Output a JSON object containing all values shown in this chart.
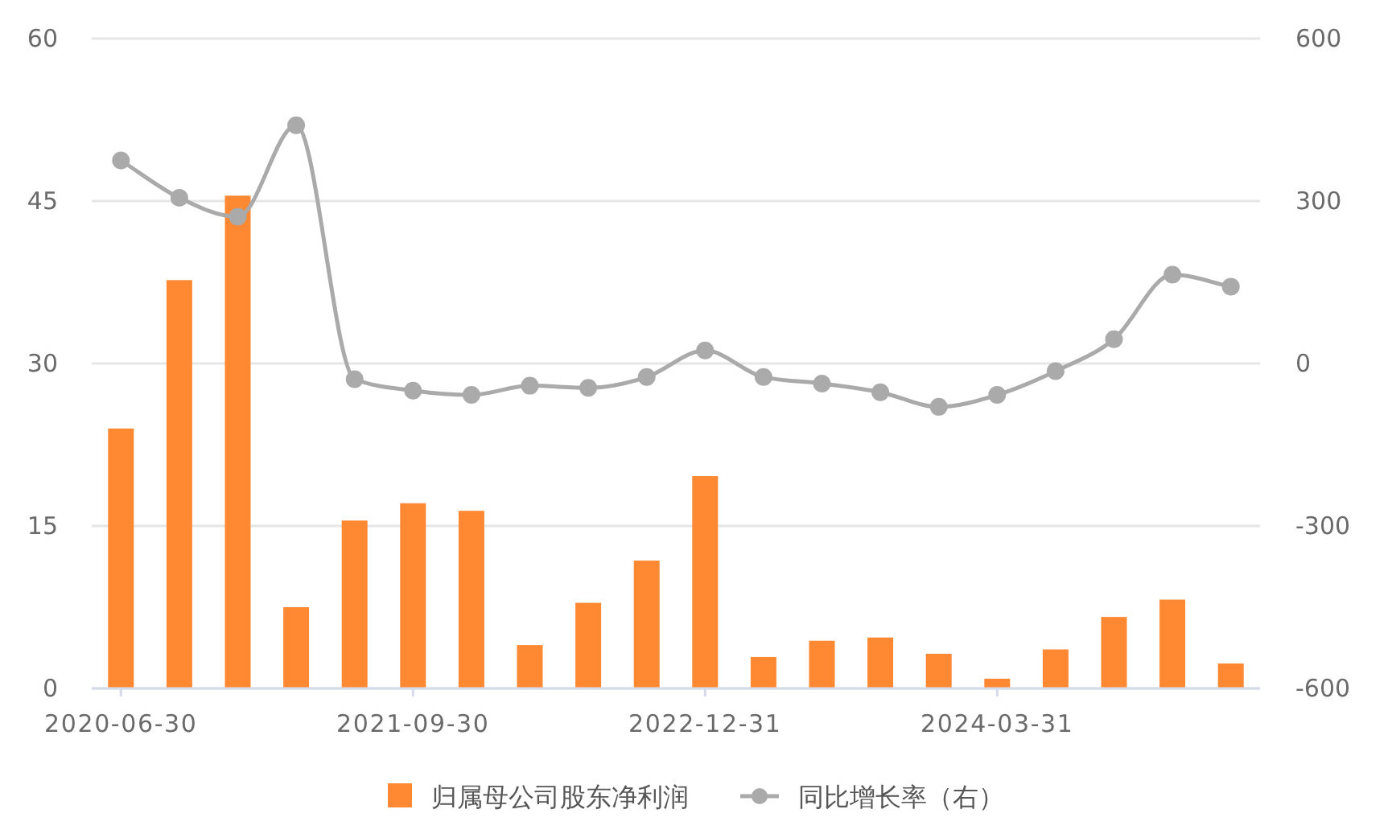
{
  "chart_data": {
    "type": "bar",
    "categories": [
      "2020-06-30",
      null,
      null,
      null,
      null,
      "2021-09-30",
      null,
      null,
      null,
      null,
      "2022-12-31",
      null,
      null,
      null,
      null,
      "2024-03-31",
      null,
      null,
      null,
      null
    ],
    "series": [
      {
        "name": "归属母公司股东净利润",
        "color": "#ff8833",
        "values": [
          24.0,
          37.7,
          45.5,
          7.5,
          15.5,
          17.1,
          16.4,
          4.0,
          7.9,
          11.8,
          19.6,
          2.9,
          4.4,
          4.7,
          3.2,
          0.9,
          3.6,
          6.6,
          8.2,
          2.3
        ]
      },
      {
        "name": "同比增长率（右）",
        "type": "line",
        "axis": "y2",
        "color": "#aaaaaa",
        "marker": "circle",
        "line_style": "solid",
        "values": [
          375,
          306,
          271,
          440,
          -29,
          -50,
          -58,
          -41,
          -45,
          -25,
          24,
          -25,
          -37,
          -53,
          -80,
          -58,
          -14,
          45,
          164,
          142
        ]
      }
    ],
    "ylim": [
      0,
      60
    ],
    "yticks": [
      0,
      15,
      30,
      45,
      60
    ],
    "y2lim": [
      -600,
      600
    ],
    "y2ticks": [
      -600,
      -300,
      0,
      300,
      600
    ],
    "grid": "y",
    "legend": "bottom"
  }
}
